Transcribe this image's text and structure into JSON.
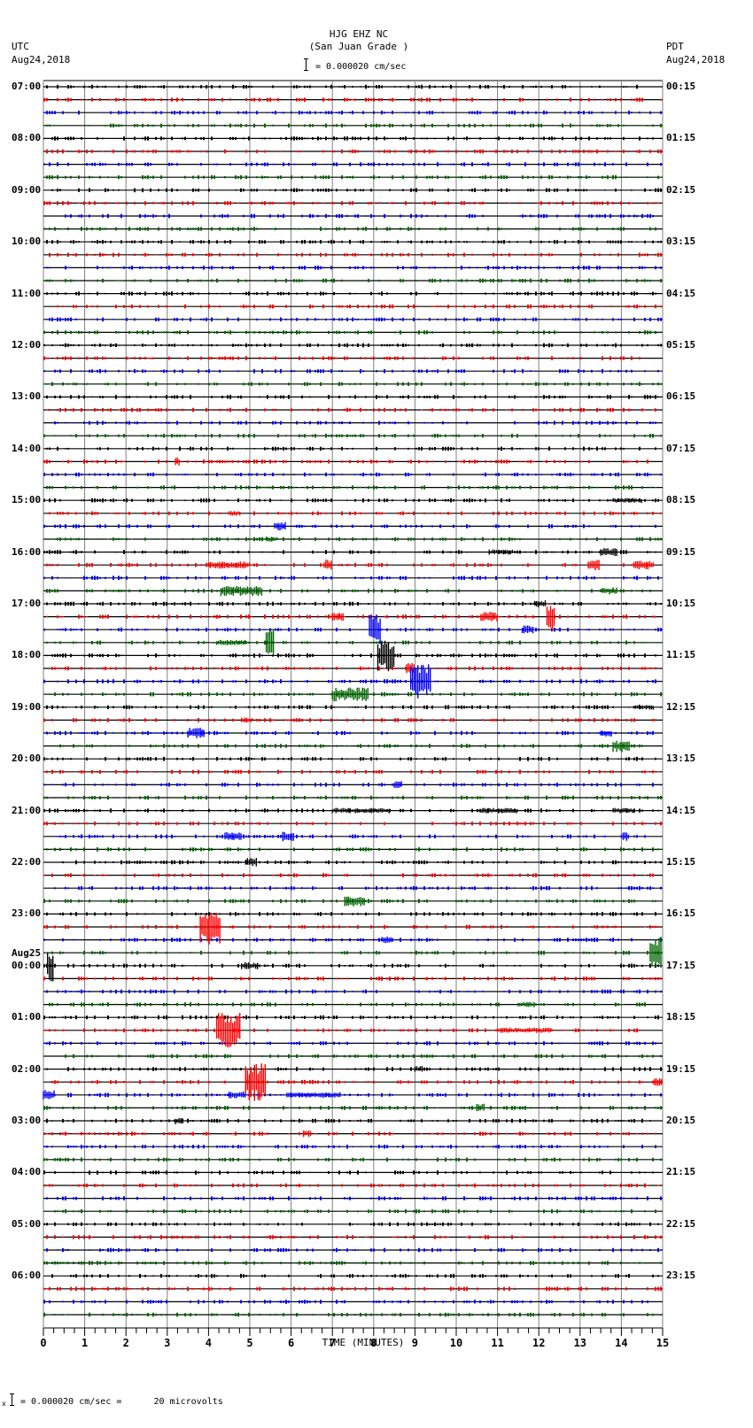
{
  "header": {
    "station": "HJG EHZ NC",
    "location": "(San Juan Grade )",
    "scale": "= 0.000020 cm/sec",
    "left_tz": "UTC",
    "left_date": "Aug24,2018",
    "right_tz": "PDT",
    "right_date": "Aug24,2018"
  },
  "footer": {
    "scale_note": "= 0.000020 cm/sec =      20 microvolts",
    "prefix": "x"
  },
  "colors": {
    "trace_cycle": [
      "#000000",
      "#ff0000",
      "#0000ff",
      "#006400"
    ],
    "grid": "#808080",
    "axis": "#000000"
  },
  "chart_data": {
    "type": "seismogram",
    "title": "HJG EHZ NC (San Juan Grade )",
    "xlabel": "TIME (MINUTES)",
    "x_ticks": [
      "0",
      "1",
      "2",
      "3",
      "4",
      "5",
      "6",
      "7",
      "8",
      "9",
      "10",
      "11",
      "12",
      "13",
      "14",
      "15"
    ],
    "xlim": [
      0,
      15
    ],
    "minor_ticks_per_minute": 4,
    "traces_per_hour": 4,
    "trace_minutes": 15,
    "left_labels": [
      {
        "row": 0,
        "text": "07:00"
      },
      {
        "row": 4,
        "text": "08:00"
      },
      {
        "row": 8,
        "text": "09:00"
      },
      {
        "row": 12,
        "text": "10:00"
      },
      {
        "row": 16,
        "text": "11:00"
      },
      {
        "row": 20,
        "text": "12:00"
      },
      {
        "row": 24,
        "text": "13:00"
      },
      {
        "row": 28,
        "text": "14:00"
      },
      {
        "row": 32,
        "text": "15:00"
      },
      {
        "row": 36,
        "text": "16:00"
      },
      {
        "row": 40,
        "text": "17:00"
      },
      {
        "row": 44,
        "text": "18:00"
      },
      {
        "row": 48,
        "text": "19:00"
      },
      {
        "row": 52,
        "text": "20:00"
      },
      {
        "row": 56,
        "text": "21:00"
      },
      {
        "row": 60,
        "text": "22:00"
      },
      {
        "row": 64,
        "text": "23:00"
      },
      {
        "row": 68,
        "text": "00:00",
        "date": "Aug25"
      },
      {
        "row": 72,
        "text": "01:00"
      },
      {
        "row": 76,
        "text": "02:00"
      },
      {
        "row": 80,
        "text": "03:00"
      },
      {
        "row": 84,
        "text": "04:00"
      },
      {
        "row": 88,
        "text": "05:00"
      },
      {
        "row": 92,
        "text": "06:00"
      }
    ],
    "right_labels": [
      {
        "row": 0,
        "text": "00:15"
      },
      {
        "row": 4,
        "text": "01:15"
      },
      {
        "row": 8,
        "text": "02:15"
      },
      {
        "row": 12,
        "text": "03:15"
      },
      {
        "row": 16,
        "text": "04:15"
      },
      {
        "row": 20,
        "text": "05:15"
      },
      {
        "row": 24,
        "text": "06:15"
      },
      {
        "row": 28,
        "text": "07:15"
      },
      {
        "row": 32,
        "text": "08:15"
      },
      {
        "row": 36,
        "text": "09:15"
      },
      {
        "row": 40,
        "text": "10:15"
      },
      {
        "row": 44,
        "text": "11:15"
      },
      {
        "row": 48,
        "text": "12:15"
      },
      {
        "row": 52,
        "text": "13:15"
      },
      {
        "row": 56,
        "text": "14:15"
      },
      {
        "row": 60,
        "text": "15:15"
      },
      {
        "row": 64,
        "text": "16:15"
      },
      {
        "row": 68,
        "text": "17:15"
      },
      {
        "row": 72,
        "text": "18:15"
      },
      {
        "row": 76,
        "text": "19:15"
      },
      {
        "row": 80,
        "text": "20:15"
      },
      {
        "row": 84,
        "text": "21:15"
      },
      {
        "row": 88,
        "text": "22:15"
      },
      {
        "row": 92,
        "text": "23:15"
      }
    ],
    "events": [
      {
        "row": 29,
        "minute": 3.2,
        "dur": 0.1,
        "amp": 5
      },
      {
        "row": 33,
        "minute": 4.5,
        "dur": 0.3,
        "amp": 3
      },
      {
        "row": 34,
        "minute": 5.6,
        "dur": 0.3,
        "amp": 5
      },
      {
        "row": 35,
        "minute": 5.4,
        "dur": 0.3,
        "amp": 3
      },
      {
        "row": 32,
        "minute": 13.8,
        "dur": 0.7,
        "amp": 3
      },
      {
        "row": 36,
        "minute": 10.8,
        "dur": 0.6,
        "amp": 3
      },
      {
        "row": 36,
        "minute": 13.5,
        "dur": 0.4,
        "amp": 5
      },
      {
        "row": 37,
        "minute": 4.0,
        "dur": 1.0,
        "amp": 4
      },
      {
        "row": 37,
        "minute": 6.8,
        "dur": 0.2,
        "amp": 6
      },
      {
        "row": 37,
        "minute": 13.2,
        "dur": 0.3,
        "amp": 6
      },
      {
        "row": 37,
        "minute": 14.3,
        "dur": 0.5,
        "amp": 5
      },
      {
        "row": 39,
        "minute": 4.3,
        "dur": 1.0,
        "amp": 6
      },
      {
        "row": 39,
        "minute": 13.5,
        "dur": 0.4,
        "amp": 4
      },
      {
        "row": 40,
        "minute": 11.9,
        "dur": 0.3,
        "amp": 4
      },
      {
        "row": 41,
        "minute": 7.0,
        "dur": 0.3,
        "amp": 5
      },
      {
        "row": 41,
        "minute": 10.6,
        "dur": 0.4,
        "amp": 6
      },
      {
        "row": 41,
        "minute": 12.2,
        "dur": 0.2,
        "amp": 17
      },
      {
        "row": 42,
        "minute": 7.9,
        "dur": 0.3,
        "amp": 17
      },
      {
        "row": 42,
        "minute": 11.6,
        "dur": 0.3,
        "amp": 5
      },
      {
        "row": 43,
        "minute": 4.2,
        "dur": 0.7,
        "amp": 3
      },
      {
        "row": 43,
        "minute": 5.4,
        "dur": 0.2,
        "amp": 18
      },
      {
        "row": 44,
        "minute": 8.1,
        "dur": 0.4,
        "amp": 18
      },
      {
        "row": 45,
        "minute": 8.8,
        "dur": 0.2,
        "amp": 6
      },
      {
        "row": 46,
        "minute": 8.9,
        "dur": 0.5,
        "amp": 20
      },
      {
        "row": 47,
        "minute": 7.0,
        "dur": 0.9,
        "amp": 8
      },
      {
        "row": 48,
        "minute": 14.3,
        "dur": 0.5,
        "amp": 3
      },
      {
        "row": 49,
        "minute": 4.8,
        "dur": 0.3,
        "amp": 3
      },
      {
        "row": 50,
        "minute": 3.5,
        "dur": 0.4,
        "amp": 6
      },
      {
        "row": 50,
        "minute": 13.5,
        "dur": 0.3,
        "amp": 4
      },
      {
        "row": 51,
        "minute": 13.8,
        "dur": 0.4,
        "amp": 7
      },
      {
        "row": 54,
        "minute": 8.5,
        "dur": 0.2,
        "amp": 4
      },
      {
        "row": 56,
        "minute": 7.0,
        "dur": 1.4,
        "amp": 3
      },
      {
        "row": 56,
        "minute": 10.6,
        "dur": 0.9,
        "amp": 3
      },
      {
        "row": 56,
        "minute": 13.8,
        "dur": 0.5,
        "amp": 3
      },
      {
        "row": 58,
        "minute": 4.4,
        "dur": 0.4,
        "amp": 5
      },
      {
        "row": 58,
        "minute": 5.8,
        "dur": 0.3,
        "amp": 6
      },
      {
        "row": 58,
        "minute": 14.0,
        "dur": 0.2,
        "amp": 5
      },
      {
        "row": 60,
        "minute": 4.9,
        "dur": 0.3,
        "amp": 5
      },
      {
        "row": 63,
        "minute": 7.3,
        "dur": 0.5,
        "amp": 6
      },
      {
        "row": 65,
        "minute": 3.8,
        "dur": 0.5,
        "amp": 20
      },
      {
        "row": 66,
        "minute": 8.2,
        "dur": 0.3,
        "amp": 4
      },
      {
        "row": 67,
        "minute": 14.7,
        "dur": 0.3,
        "amp": 18
      },
      {
        "row": 68,
        "minute": 0.1,
        "dur": 0.15,
        "amp": 18
      },
      {
        "row": 68,
        "minute": 4.8,
        "dur": 0.4,
        "amp": 4
      },
      {
        "row": 71,
        "minute": 11.5,
        "dur": 0.4,
        "amp": 3
      },
      {
        "row": 73,
        "minute": 4.2,
        "dur": 0.6,
        "amp": 20
      },
      {
        "row": 73,
        "minute": 11.0,
        "dur": 1.3,
        "amp": 3
      },
      {
        "row": 76,
        "minute": 9.0,
        "dur": 0.2,
        "amp": 4
      },
      {
        "row": 77,
        "minute": 4.9,
        "dur": 0.5,
        "amp": 22
      },
      {
        "row": 77,
        "minute": 14.8,
        "dur": 0.2,
        "amp": 5
      },
      {
        "row": 78,
        "minute": 0.0,
        "dur": 0.3,
        "amp": 6
      },
      {
        "row": 78,
        "minute": 4.5,
        "dur": 0.4,
        "amp": 4
      },
      {
        "row": 78,
        "minute": 5.9,
        "dur": 1.3,
        "amp": 3
      },
      {
        "row": 79,
        "minute": 10.5,
        "dur": 0.2,
        "amp": 5
      },
      {
        "row": 80,
        "minute": 3.2,
        "dur": 0.2,
        "amp": 4
      },
      {
        "row": 81,
        "minute": 6.3,
        "dur": 0.2,
        "amp": 4
      }
    ]
  }
}
